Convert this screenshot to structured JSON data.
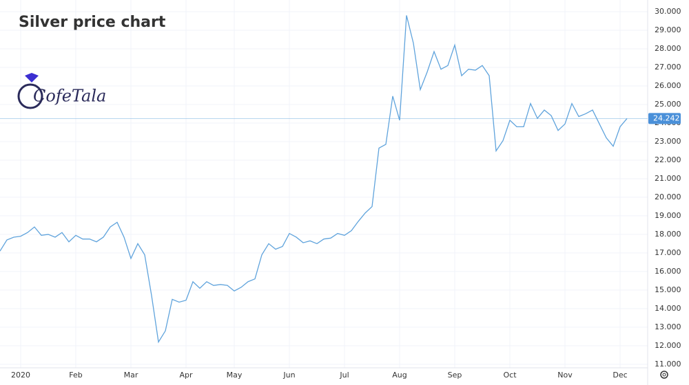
{
  "chart_data": {
    "type": "line",
    "title": "Silver price chart",
    "logo": "CofeTala",
    "categories": [
      null,
      null,
      null,
      "2020",
      null,
      null,
      null,
      null,
      null,
      null,
      null,
      "Feb",
      null,
      null,
      null,
      null,
      null,
      null,
      null,
      "Mar",
      null,
      null,
      null,
      null,
      null,
      null,
      null,
      "Apr",
      null,
      null,
      null,
      null,
      null,
      null,
      "May",
      null,
      null,
      null,
      null,
      null,
      null,
      null,
      "Jun",
      null,
      null,
      null,
      null,
      null,
      null,
      null,
      "Jul",
      null,
      null,
      null,
      null,
      null,
      null,
      null,
      "Aug",
      null,
      null,
      null,
      null,
      null,
      null,
      null,
      "Sep",
      null,
      null,
      null,
      null,
      null,
      null,
      null,
      "Oct",
      null,
      null,
      null,
      null,
      null,
      null,
      null,
      "Nov",
      null,
      null,
      null,
      null,
      null,
      null,
      null,
      "Dec",
      null
    ],
    "values": [
      17.1,
      17.7,
      17.85,
      17.9,
      18.1,
      18.4,
      17.95,
      18.0,
      17.85,
      18.1,
      17.6,
      17.95,
      17.75,
      17.75,
      17.6,
      17.85,
      18.4,
      18.65,
      17.85,
      16.7,
      17.5,
      16.9,
      14.7,
      12.2,
      12.8,
      14.5,
      14.35,
      14.45,
      15.45,
      15.1,
      15.45,
      15.25,
      15.3,
      15.25,
      14.95,
      15.15,
      15.45,
      15.6,
      16.9,
      17.5,
      17.2,
      17.35,
      18.05,
      17.85,
      17.55,
      17.65,
      17.5,
      17.75,
      17.8,
      18.05,
      17.95,
      18.2,
      18.7,
      19.15,
      19.5,
      22.65,
      22.85,
      25.45,
      24.15,
      29.8,
      28.3,
      25.8,
      26.75,
      27.85,
      26.9,
      27.1,
      28.2,
      26.55,
      26.9,
      26.85,
      27.1,
      26.55,
      22.5,
      23.05,
      24.15,
      23.8,
      23.8,
      25.05,
      24.25,
      24.7,
      24.4,
      23.6,
      23.95,
      25.05,
      24.35,
      24.5,
      24.7,
      23.95,
      23.2,
      22.75,
      23.8,
      24.242
    ],
    "color": "#5fa3dc",
    "last_value": 24.242,
    "ylim": [
      10.81,
      30.63
    ],
    "yticks": [
      {
        "value": 11,
        "label": "11.000"
      },
      {
        "value": 12,
        "label": "12.000"
      },
      {
        "value": 13,
        "label": "13.000"
      },
      {
        "value": 14,
        "label": "14.000"
      },
      {
        "value": 15,
        "label": "15.000"
      },
      {
        "value": 16,
        "label": "16.000"
      },
      {
        "value": 17,
        "label": "17.000"
      },
      {
        "value": 18,
        "label": "18.000"
      },
      {
        "value": 19,
        "label": "19.000"
      },
      {
        "value": 20,
        "label": "20.000"
      },
      {
        "value": 21,
        "label": "21.000"
      },
      {
        "value": 22,
        "label": "22.000"
      },
      {
        "value": 23,
        "label": "23.000"
      },
      {
        "value": 24,
        "label": "24.000"
      },
      {
        "value": 25,
        "label": "25.000"
      },
      {
        "value": 26,
        "label": "26.000"
      },
      {
        "value": 27,
        "label": "27.000"
      },
      {
        "value": 28,
        "label": "28.000"
      },
      {
        "value": 29,
        "label": "29.000"
      },
      {
        "value": 30,
        "label": "30.000"
      }
    ],
    "grid": true
  }
}
